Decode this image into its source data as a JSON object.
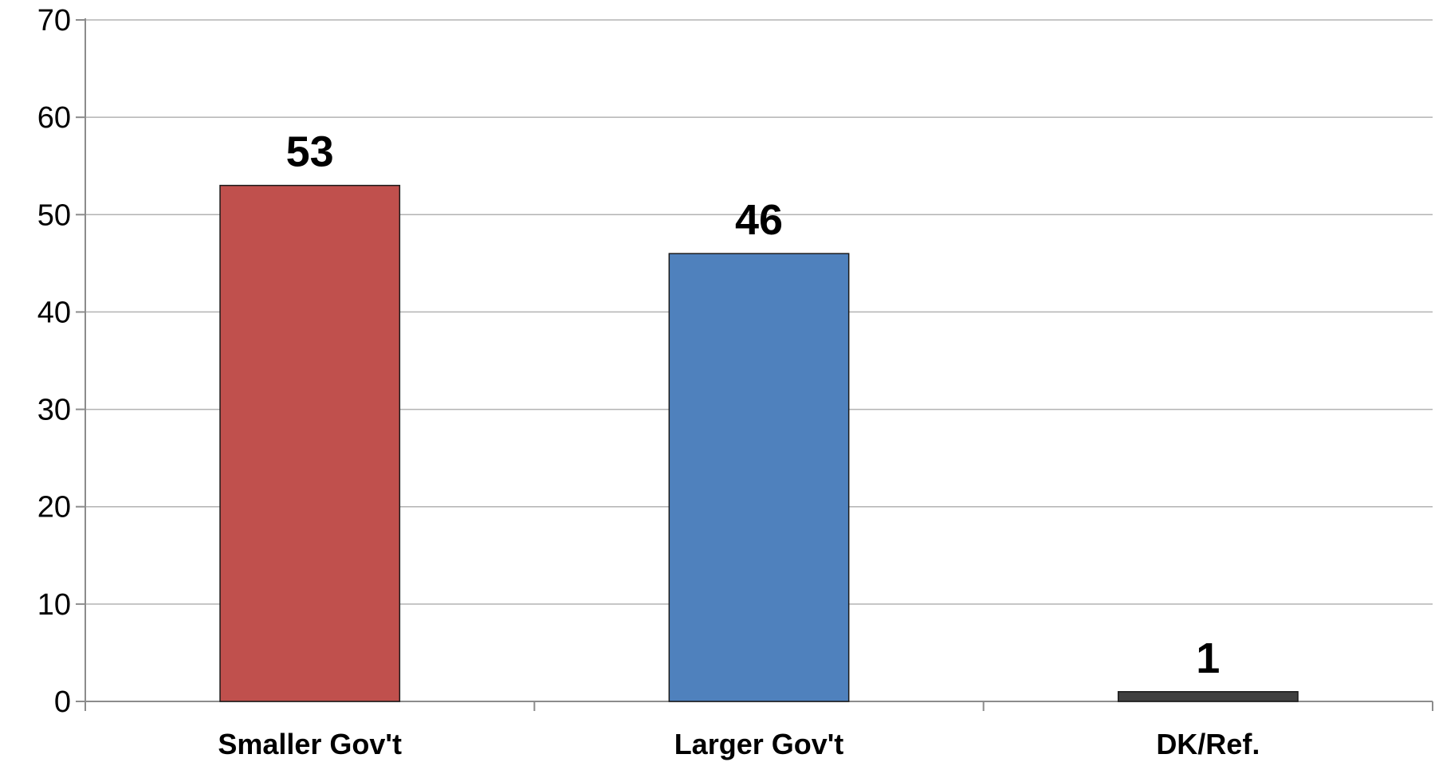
{
  "chart_data": {
    "type": "bar",
    "categories": [
      "Smaller Gov't",
      "Larger Gov't",
      "DK/Ref."
    ],
    "values": [
      53,
      46,
      1
    ],
    "data_labels": [
      "53",
      "46",
      "1"
    ],
    "colors": [
      "#c0504d",
      "#4f81bd",
      "#404040"
    ],
    "ylim": [
      0,
      70
    ],
    "yticks": [
      0,
      10,
      20,
      30,
      40,
      50,
      60,
      70
    ],
    "ytick_labels": [
      "0",
      "10",
      "20",
      "30",
      "40",
      "50",
      "60",
      "70"
    ],
    "grid": true,
    "legend": "none",
    "title": "",
    "xlabel": "",
    "ylabel": ""
  }
}
